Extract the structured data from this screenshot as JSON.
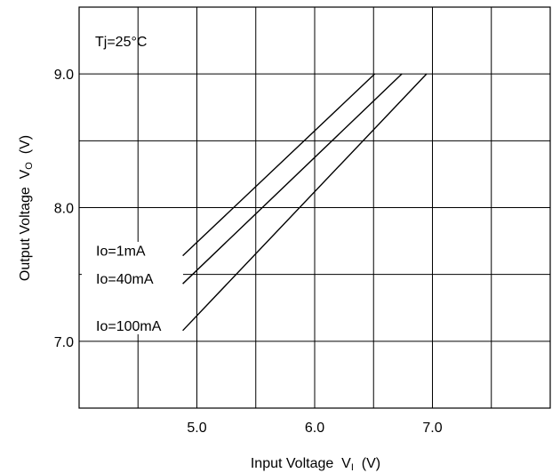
{
  "chart_data": {
    "type": "line",
    "xlabel": "Input Voltage  V",
    "xlabel_sub": "I",
    "xlabel_unit": "  (V)",
    "ylabel": "Output Voltage  V",
    "ylabel_sub": "O",
    "ylabel_unit": "  (V)",
    "xlim": [
      4.0,
      8.0
    ],
    "ylim": [
      6.5,
      9.5
    ],
    "x_ticks": [
      "5.0",
      "6.0",
      "7.0"
    ],
    "x_tick_values": [
      5.0,
      6.0,
      7.0
    ],
    "y_ticks": [
      "7.0",
      "8.0",
      "9.0"
    ],
    "y_tick_values": [
      7.0,
      8.0,
      9.0
    ],
    "x_grid": [
      4.5,
      5.0,
      5.5,
      6.0,
      6.5,
      7.0,
      7.5
    ],
    "y_grid": [
      7.0,
      7.5,
      8.0,
      8.5,
      9.0
    ],
    "grid": true,
    "annotation": "Tj=25°C",
    "series": [
      {
        "name": "Io=1mA",
        "x": [
          4.88,
          6.51
        ],
        "y": [
          7.64,
          9.0
        ]
      },
      {
        "name": "Io=40mA",
        "x": [
          4.88,
          6.74
        ],
        "y": [
          7.43,
          9.0
        ]
      },
      {
        "name": "Io=100mA",
        "x": [
          4.88,
          6.95
        ],
        "y": [
          7.08,
          9.0
        ]
      }
    ]
  }
}
